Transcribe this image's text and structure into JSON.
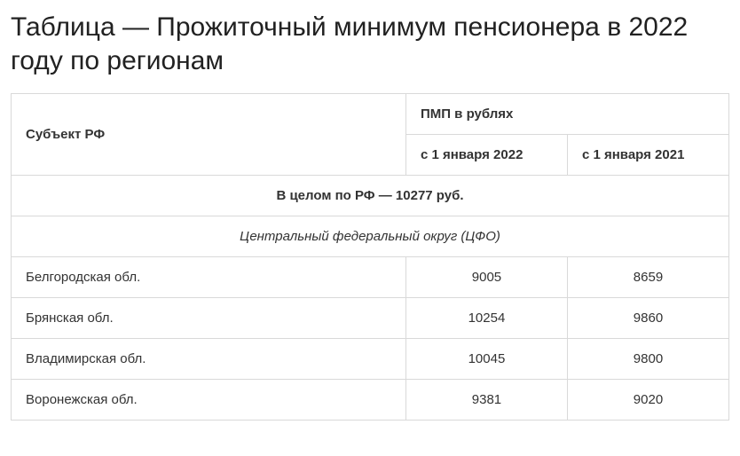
{
  "title": "Таблица — Прожиточный минимум пенсионера в 2022 году по регионам",
  "table": {
    "type": "table",
    "columns": {
      "subject": "Субъект РФ",
      "pmp_group": "ПМП в рублях",
      "col2022": "с 1 января 2022",
      "col2021": "с 1 января 2021"
    },
    "column_widths": [
      "55%",
      "22.5%",
      "22.5%"
    ],
    "border_color": "#d9d9d9",
    "background_color": "#ffffff",
    "text_color": "#333333",
    "header_fontsize": 15,
    "cell_fontsize": 15,
    "summary": "В целом по РФ — 10277 руб.",
    "district": "Центральный федеральный округ (ЦФО)",
    "rows": [
      {
        "name": "Белгородская обл.",
        "v2022": "9005",
        "v2021": "8659"
      },
      {
        "name": "Брянская обл.",
        "v2022": "10254",
        "v2021": "9860"
      },
      {
        "name": "Владимирская обл.",
        "v2022": "10045",
        "v2021": "9800"
      },
      {
        "name": "Воронежская обл.",
        "v2022": "9381",
        "v2021": "9020"
      }
    ]
  }
}
